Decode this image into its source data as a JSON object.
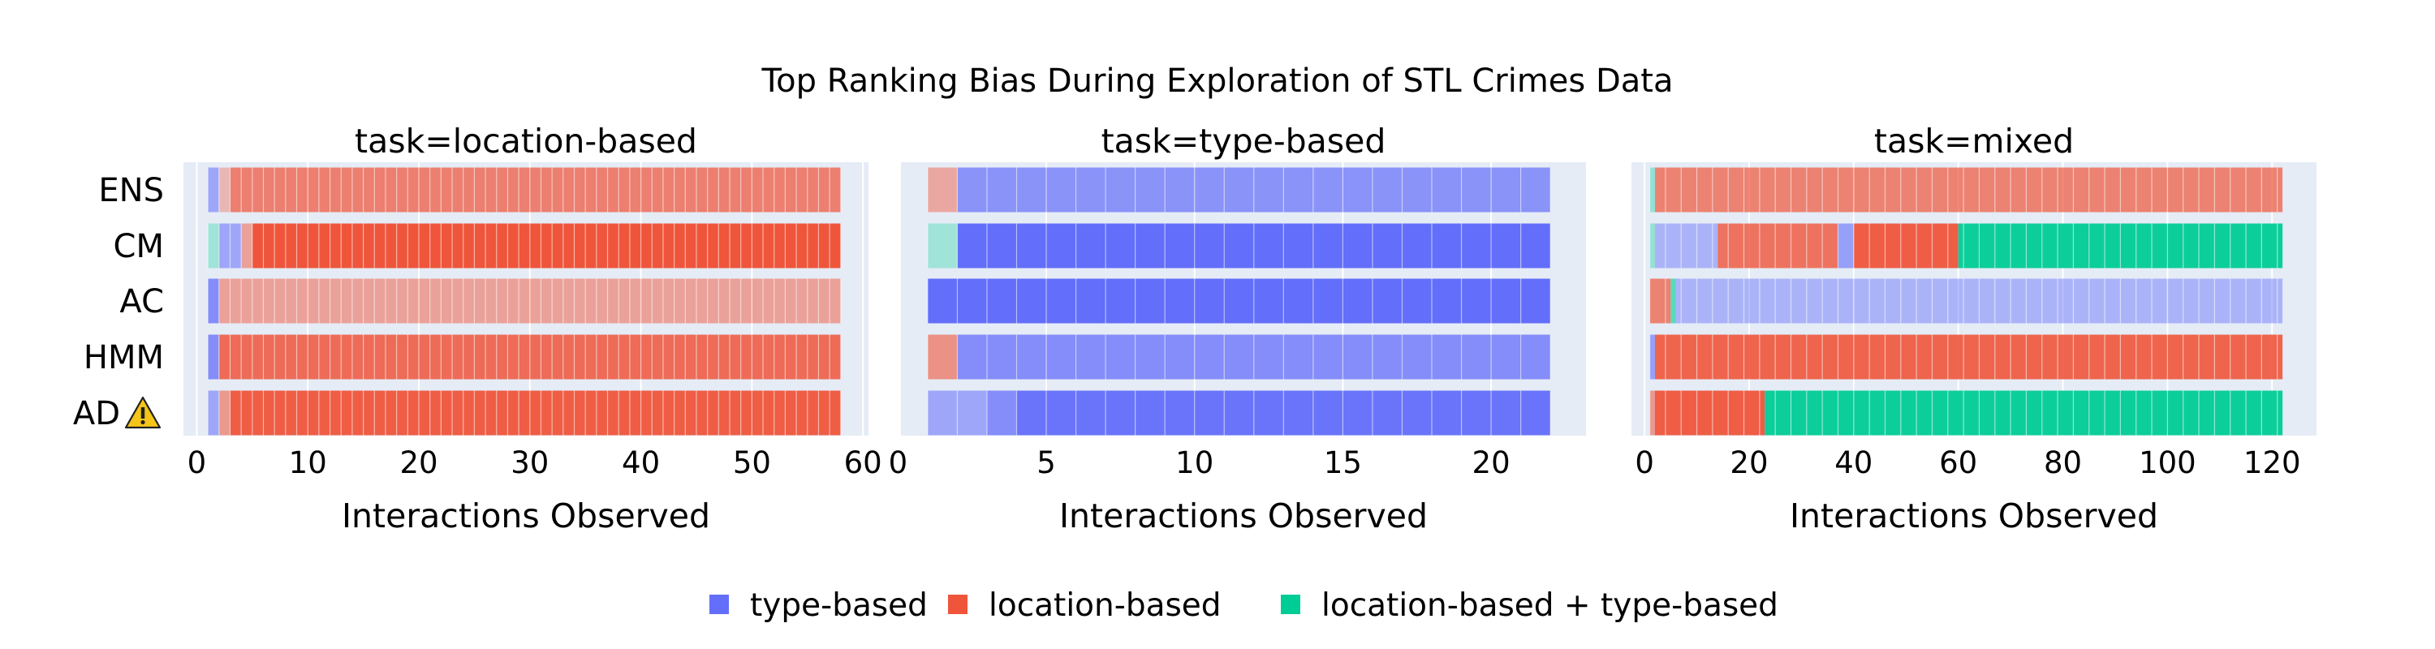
{
  "chart_data": {
    "type": "bar",
    "orientation": "horizontal",
    "stacked": true,
    "title": "Top Ranking Bias During Exploration of STL Crimes Data",
    "y_categories": [
      "ENS",
      "CM",
      "AC",
      "HMM",
      "AD"
    ],
    "warning_marker": {
      "category": "AD",
      "symbol": "⚠"
    },
    "colors": {
      "type-based": "#636efa",
      "location-based": "#ef553b",
      "location-based + type-based": "#00cc96"
    },
    "legend": {
      "placement": "bottom-center",
      "entries": [
        {
          "name": "type-based",
          "color_key": "type-based"
        },
        {
          "name": "location-based",
          "color_key": "location-based"
        },
        {
          "name": "location-based + type-based",
          "color_key": "location-based + type-based"
        }
      ]
    },
    "panels": [
      {
        "subtitle": "task=location-based",
        "xlabel": "Interactions Observed",
        "xlim": [
          -1.2,
          60.5
        ],
        "xticks": [
          0,
          10,
          20,
          30,
          40,
          50,
          60
        ],
        "grid": true,
        "rows": [
          {
            "category": "ENS",
            "segments": [
              {
                "bias": "type-based",
                "start": 1,
                "end": 2,
                "opacity": 0.55
              },
              {
                "bias": "location-based",
                "start": 2,
                "end": 3,
                "opacity": 0.35
              },
              {
                "bias": "location-based",
                "start": 3,
                "end": 58,
                "opacity": 0.72
              }
            ]
          },
          {
            "category": "CM",
            "segments": [
              {
                "bias": "location-based + type-based",
                "start": 1,
                "end": 2,
                "opacity": 0.3
              },
              {
                "bias": "type-based",
                "start": 2,
                "end": 4,
                "opacity": 0.55
              },
              {
                "bias": "location-based",
                "start": 4,
                "end": 5,
                "opacity": 0.5
              },
              {
                "bias": "location-based",
                "start": 5,
                "end": 58,
                "opacity": 1.0
              }
            ]
          },
          {
            "category": "AC",
            "segments": [
              {
                "bias": "type-based",
                "start": 1,
                "end": 2,
                "opacity": 0.75
              },
              {
                "bias": "location-based",
                "start": 2,
                "end": 58,
                "opacity": 0.5
              }
            ]
          },
          {
            "category": "HMM",
            "segments": [
              {
                "bias": "type-based",
                "start": 1,
                "end": 2,
                "opacity": 0.75
              },
              {
                "bias": "location-based",
                "start": 2,
                "end": 58,
                "opacity": 0.85
              }
            ]
          },
          {
            "category": "AD",
            "segments": [
              {
                "bias": "type-based",
                "start": 1,
                "end": 2,
                "opacity": 0.55
              },
              {
                "bias": "location-based",
                "start": 2,
                "end": 3,
                "opacity": 0.55
              },
              {
                "bias": "location-based",
                "start": 3,
                "end": 58,
                "opacity": 0.95
              }
            ]
          }
        ]
      },
      {
        "subtitle": "task=type-based",
        "xlabel": "Interactions Observed",
        "xlim": [
          0.1,
          23.2
        ],
        "xticks": [
          0,
          5,
          10,
          15,
          20
        ],
        "grid": true,
        "rows": [
          {
            "category": "ENS",
            "segments": [
              {
                "bias": "location-based",
                "start": 1,
                "end": 2,
                "opacity": 0.45
              },
              {
                "bias": "type-based",
                "start": 2,
                "end": 22,
                "opacity": 0.7
              }
            ]
          },
          {
            "category": "CM",
            "segments": [
              {
                "bias": "location-based + type-based",
                "start": 1,
                "end": 2,
                "opacity": 0.3
              },
              {
                "bias": "type-based",
                "start": 2,
                "end": 22,
                "opacity": 1.0
              }
            ]
          },
          {
            "category": "AC",
            "segments": [
              {
                "bias": "type-based",
                "start": 1,
                "end": 22,
                "opacity": 1.0
              }
            ]
          },
          {
            "category": "HMM",
            "segments": [
              {
                "bias": "location-based",
                "start": 1,
                "end": 2,
                "opacity": 0.6
              },
              {
                "bias": "type-based",
                "start": 2,
                "end": 22,
                "opacity": 0.75
              }
            ]
          },
          {
            "category": "AD",
            "segments": [
              {
                "bias": "type-based",
                "start": 1,
                "end": 3,
                "opacity": 0.55
              },
              {
                "bias": "type-based",
                "start": 3,
                "end": 4,
                "opacity": 0.75
              },
              {
                "bias": "type-based",
                "start": 4,
                "end": 22,
                "opacity": 0.95
              }
            ]
          }
        ]
      },
      {
        "subtitle": "task=mixed",
        "xlabel": "Interactions Observed",
        "xlim": [
          -2.5,
          128.5
        ],
        "xticks": [
          0,
          20,
          40,
          60,
          80,
          100,
          120
        ],
        "grid": true,
        "rows": [
          {
            "category": "ENS",
            "segments": [
              {
                "bias": "location-based + type-based",
                "start": 1,
                "end": 2,
                "opacity": 0.35
              },
              {
                "bias": "location-based",
                "start": 2,
                "end": 122,
                "opacity": 0.7
              }
            ]
          },
          {
            "category": "CM",
            "segments": [
              {
                "bias": "location-based + type-based",
                "start": 1,
                "end": 2,
                "opacity": 0.35
              },
              {
                "bias": "type-based",
                "start": 2,
                "end": 14,
                "opacity": 0.45
              },
              {
                "bias": "location-based",
                "start": 14,
                "end": 37,
                "opacity": 0.8
              },
              {
                "bias": "type-based",
                "start": 37,
                "end": 40,
                "opacity": 0.6
              },
              {
                "bias": "location-based",
                "start": 40,
                "end": 60,
                "opacity": 0.95
              },
              {
                "bias": "location-based + type-based",
                "start": 60,
                "end": 122,
                "opacity": 0.95
              }
            ]
          },
          {
            "category": "AC",
            "segments": [
              {
                "bias": "location-based",
                "start": 1,
                "end": 5,
                "opacity": 0.7
              },
              {
                "bias": "location-based + type-based",
                "start": 5,
                "end": 6,
                "opacity": 0.6
              },
              {
                "bias": "type-based",
                "start": 6,
                "end": 122,
                "opacity": 0.45
              }
            ]
          },
          {
            "category": "HMM",
            "segments": [
              {
                "bias": "type-based",
                "start": 1,
                "end": 2,
                "opacity": 0.6
              },
              {
                "bias": "location-based",
                "start": 2,
                "end": 122,
                "opacity": 0.9
              }
            ]
          },
          {
            "category": "AD",
            "segments": [
              {
                "bias": "location-based",
                "start": 1,
                "end": 2,
                "opacity": 0.55
              },
              {
                "bias": "location-based",
                "start": 2,
                "end": 23,
                "opacity": 0.95
              },
              {
                "bias": "location-based + type-based",
                "start": 23,
                "end": 122,
                "opacity": 0.95
              }
            ]
          }
        ]
      }
    ]
  }
}
